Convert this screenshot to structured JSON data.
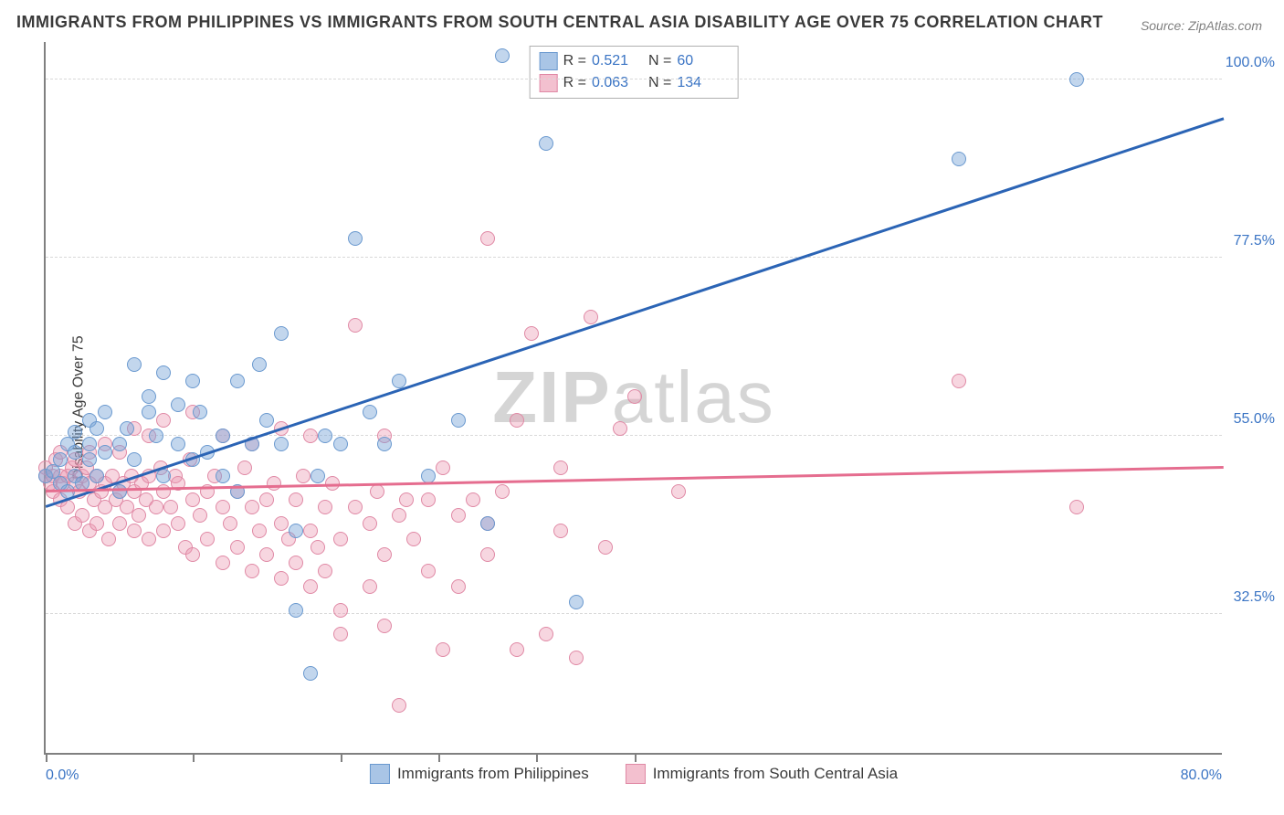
{
  "title": "IMMIGRANTS FROM PHILIPPINES VS IMMIGRANTS FROM SOUTH CENTRAL ASIA DISABILITY AGE OVER 75 CORRELATION CHART",
  "source": "Source: ZipAtlas.com",
  "y_axis_label": "Disability Age Over 75",
  "watermark_bold": "ZIP",
  "watermark_light": "atlas",
  "chart": {
    "type": "scatter",
    "xlim": [
      0,
      80
    ],
    "ylim": [
      15,
      105
    ],
    "x_ticks": [
      0,
      10,
      20,
      26.67,
      33.33,
      40
    ],
    "x_tick_labels": {
      "left": "0.0%",
      "right": "80.0%"
    },
    "y_ticks": [
      32.5,
      55.0,
      77.5,
      100.0
    ],
    "y_tick_labels": [
      "32.5%",
      "55.0%",
      "77.5%",
      "100.0%"
    ],
    "grid_color": "#d9d9d9",
    "axis_color": "#808080",
    "background_color": "#ffffff",
    "marker_radius": 8,
    "marker_border_width": 1,
    "series": [
      {
        "name": "Immigrants from Philippines",
        "fill_color": "rgba(120,164,216,0.45)",
        "border_color": "#6a99cf",
        "swatch_fill": "#a9c5e6",
        "swatch_border": "#6a99cf",
        "R": "0.521",
        "N": "60",
        "trend": {
          "x1": 0,
          "y1": 46,
          "x2": 80,
          "y2": 95,
          "color": "#2b64b5",
          "width": 2.5
        },
        "points": [
          [
            0,
            50
          ],
          [
            0.5,
            50.5
          ],
          [
            1,
            52
          ],
          [
            1,
            49
          ],
          [
            1.5,
            48
          ],
          [
            1.5,
            54
          ],
          [
            2,
            53
          ],
          [
            2,
            50
          ],
          [
            2,
            55.5
          ],
          [
            2.5,
            49
          ],
          [
            3,
            54
          ],
          [
            3,
            52
          ],
          [
            3,
            57
          ],
          [
            3.5,
            50
          ],
          [
            3.5,
            56
          ],
          [
            4,
            53
          ],
          [
            4,
            58
          ],
          [
            5,
            54
          ],
          [
            5,
            48
          ],
          [
            5.5,
            56
          ],
          [
            6,
            64
          ],
          [
            6,
            52
          ],
          [
            7,
            58
          ],
          [
            7,
            60
          ],
          [
            7.5,
            55
          ],
          [
            8,
            63
          ],
          [
            8,
            50
          ],
          [
            9,
            59
          ],
          [
            9,
            54
          ],
          [
            10,
            62
          ],
          [
            10,
            52
          ],
          [
            10.5,
            58
          ],
          [
            11,
            53
          ],
          [
            12,
            55
          ],
          [
            12,
            50
          ],
          [
            13,
            62
          ],
          [
            13,
            48
          ],
          [
            14,
            54
          ],
          [
            14.5,
            64
          ],
          [
            15,
            57
          ],
          [
            16,
            54
          ],
          [
            16,
            68
          ],
          [
            17,
            43
          ],
          [
            17,
            33
          ],
          [
            18,
            25
          ],
          [
            18.5,
            50
          ],
          [
            19,
            55
          ],
          [
            20,
            54
          ],
          [
            21,
            80
          ],
          [
            22,
            58
          ],
          [
            23,
            54
          ],
          [
            24,
            62
          ],
          [
            26,
            50
          ],
          [
            28,
            57
          ],
          [
            30,
            44
          ],
          [
            31,
            103
          ],
          [
            34,
            92
          ],
          [
            36,
            34
          ],
          [
            62,
            90
          ],
          [
            70,
            100
          ]
        ]
      },
      {
        "name": "Immigrants from South Central Asia",
        "fill_color": "rgba(236,152,177,0.40)",
        "border_color": "#e089a5",
        "swatch_fill": "#f3c0cf",
        "swatch_border": "#e089a5",
        "R": "0.063",
        "N": "134",
        "trend": {
          "x1": 0,
          "y1": 48,
          "x2": 80,
          "y2": 51,
          "color": "#e56d8f",
          "width": 2.5
        },
        "points": [
          [
            0,
            50
          ],
          [
            0,
            51
          ],
          [
            0.3,
            49
          ],
          [
            0.5,
            50
          ],
          [
            0.5,
            48
          ],
          [
            0.7,
            52
          ],
          [
            1,
            50
          ],
          [
            1,
            47
          ],
          [
            1,
            53
          ],
          [
            1.2,
            49
          ],
          [
            1.5,
            50
          ],
          [
            1.5,
            46
          ],
          [
            1.8,
            51
          ],
          [
            2,
            49
          ],
          [
            2,
            44
          ],
          [
            2,
            52
          ],
          [
            2.3,
            48
          ],
          [
            2.5,
            50
          ],
          [
            2.5,
            45
          ],
          [
            2.8,
            51
          ],
          [
            3,
            49
          ],
          [
            3,
            43
          ],
          [
            3,
            53
          ],
          [
            3.3,
            47
          ],
          [
            3.5,
            50
          ],
          [
            3.5,
            44
          ],
          [
            3.8,
            48
          ],
          [
            4,
            49
          ],
          [
            4,
            46
          ],
          [
            4,
            54
          ],
          [
            4.3,
            42
          ],
          [
            4.5,
            50
          ],
          [
            4.8,
            47
          ],
          [
            5,
            48
          ],
          [
            5,
            44
          ],
          [
            5,
            53
          ],
          [
            5.3,
            49
          ],
          [
            5.5,
            46
          ],
          [
            5.8,
            50
          ],
          [
            6,
            48
          ],
          [
            6,
            43
          ],
          [
            6,
            56
          ],
          [
            6.3,
            45
          ],
          [
            6.5,
            49
          ],
          [
            6.8,
            47
          ],
          [
            7,
            50
          ],
          [
            7,
            42
          ],
          [
            7,
            55
          ],
          [
            7.5,
            46
          ],
          [
            7.8,
            51
          ],
          [
            8,
            48
          ],
          [
            8,
            43
          ],
          [
            8,
            57
          ],
          [
            8.5,
            46
          ],
          [
            8.8,
            50
          ],
          [
            9,
            44
          ],
          [
            9,
            49
          ],
          [
            9.5,
            41
          ],
          [
            9.8,
            52
          ],
          [
            10,
            47
          ],
          [
            10,
            40
          ],
          [
            10,
            58
          ],
          [
            10.5,
            45
          ],
          [
            11,
            48
          ],
          [
            11,
            42
          ],
          [
            11.5,
            50
          ],
          [
            12,
            46
          ],
          [
            12,
            39
          ],
          [
            12,
            55
          ],
          [
            12.5,
            44
          ],
          [
            13,
            48
          ],
          [
            13,
            41
          ],
          [
            13.5,
            51
          ],
          [
            14,
            46
          ],
          [
            14,
            38
          ],
          [
            14,
            54
          ],
          [
            14.5,
            43
          ],
          [
            15,
            47
          ],
          [
            15,
            40
          ],
          [
            15.5,
            49
          ],
          [
            16,
            44
          ],
          [
            16,
            37
          ],
          [
            16,
            56
          ],
          [
            16.5,
            42
          ],
          [
            17,
            47
          ],
          [
            17,
            39
          ],
          [
            17.5,
            50
          ],
          [
            18,
            43
          ],
          [
            18,
            36
          ],
          [
            18,
            55
          ],
          [
            18.5,
            41
          ],
          [
            19,
            46
          ],
          [
            19,
            38
          ],
          [
            19.5,
            49
          ],
          [
            20,
            42
          ],
          [
            20,
            33
          ],
          [
            20,
            30
          ],
          [
            21,
            46
          ],
          [
            21,
            69
          ],
          [
            22,
            44
          ],
          [
            22,
            36
          ],
          [
            22.5,
            48
          ],
          [
            23,
            40
          ],
          [
            23,
            31
          ],
          [
            23,
            55
          ],
          [
            24,
            45
          ],
          [
            24,
            21
          ],
          [
            24.5,
            47
          ],
          [
            25,
            42
          ],
          [
            26,
            47
          ],
          [
            26,
            38
          ],
          [
            27,
            51
          ],
          [
            27,
            28
          ],
          [
            28,
            45
          ],
          [
            28,
            36
          ],
          [
            29,
            47
          ],
          [
            30,
            44
          ],
          [
            30,
            40
          ],
          [
            30,
            80
          ],
          [
            31,
            48
          ],
          [
            32,
            57
          ],
          [
            32,
            28
          ],
          [
            33,
            68
          ],
          [
            34,
            30
          ],
          [
            35,
            51
          ],
          [
            35,
            43
          ],
          [
            36,
            27
          ],
          [
            37,
            70
          ],
          [
            38,
            41
          ],
          [
            39,
            56
          ],
          [
            40,
            60
          ],
          [
            43,
            48
          ],
          [
            62,
            62
          ],
          [
            70,
            46
          ]
        ]
      }
    ]
  },
  "legend": {
    "R_label": "R",
    "N_label": "N",
    "eq": "="
  }
}
